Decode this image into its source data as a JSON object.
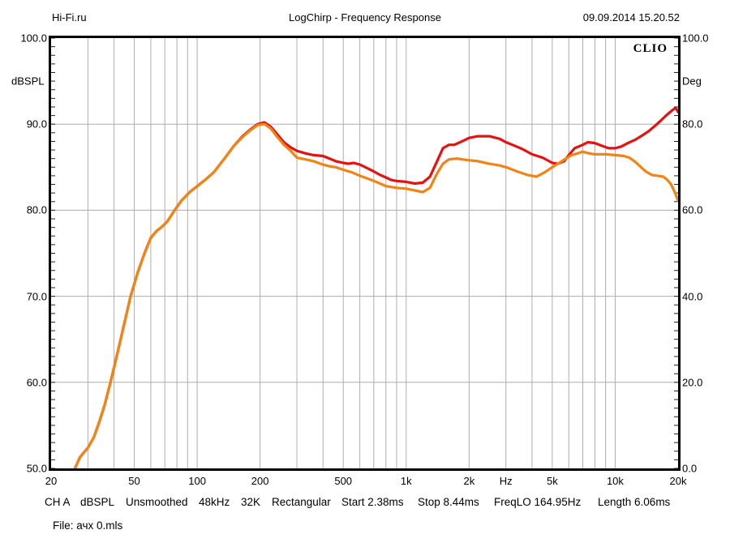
{
  "header": {
    "site": "Hi-Fi.ru",
    "title": "LogChirp - Frequency Response",
    "timestamp": "09.09.2014 15.20.52"
  },
  "branding": {
    "logo_text": "CLIO"
  },
  "file_line": "File: ачх 0.mls",
  "status_bar": {
    "items": [
      "CH A",
      "dBSPL",
      "Unsmoothed",
      "48kHz",
      "32K",
      "Rectangular",
      "Start 2.38ms",
      "Stop 8.44ms",
      "FreqLO 164.95Hz",
      "Length 6.06ms"
    ]
  },
  "colors": {
    "red_curve": "#e51212",
    "orange_curve": "#f08414",
    "grid": "#adadad",
    "axis": "#000000",
    "minor_tick": "#222222"
  },
  "chart_data": {
    "type": "line",
    "title": "LogChirp - Frequency Response",
    "x_axis": {
      "scale": "log",
      "unit": "Hz",
      "min": 20,
      "max": 20000,
      "unit_label_at": 3000,
      "ticks": [
        {
          "v": 20,
          "label": "20"
        },
        {
          "v": 50,
          "label": "50"
        },
        {
          "v": 100,
          "label": "100"
        },
        {
          "v": 200,
          "label": "200"
        },
        {
          "v": 500,
          "label": "500"
        },
        {
          "v": 1000,
          "label": "1k"
        },
        {
          "v": 2000,
          "label": "2k"
        },
        {
          "v": 5000,
          "label": "5k"
        },
        {
          "v": 10000,
          "label": "10k"
        },
        {
          "v": 20000,
          "label": "20k"
        }
      ],
      "gridlines": [
        30,
        40,
        50,
        60,
        70,
        80,
        90,
        100,
        200,
        300,
        400,
        500,
        600,
        700,
        800,
        900,
        1000,
        2000,
        3000,
        4000,
        5000,
        6000,
        7000,
        8000,
        9000,
        10000
      ]
    },
    "y_left_axis": {
      "label": "dBSPL",
      "min": 50,
      "max": 100,
      "major_step": 10,
      "minor_step": 1,
      "tick_labels": [
        "100.0",
        "90.0",
        "80.0",
        "70.0",
        "60.0",
        "50.0"
      ],
      "gridlines": [
        90,
        80,
        70,
        60
      ]
    },
    "y_right_axis": {
      "label": "Deg",
      "min": 0,
      "max": 100,
      "major_step": 20,
      "minor_step": 2,
      "tick_labels": [
        "100.0",
        "80.0",
        "60.0",
        "40.0",
        "20.0",
        "0.0"
      ]
    },
    "legend": "none",
    "grid": true,
    "series": [
      {
        "name": "red-response",
        "color_key": "red_curve",
        "axis": "left",
        "unit": "dBSPL",
        "points": [
          [
            26,
            50.0
          ],
          [
            27.5,
            51.3
          ],
          [
            30,
            52.4
          ],
          [
            32,
            53.6
          ],
          [
            34,
            55.4
          ],
          [
            36,
            57.3
          ],
          [
            38.3,
            59.8
          ],
          [
            41,
            62.8
          ],
          [
            44,
            66.0
          ],
          [
            48,
            70.0
          ],
          [
            52,
            72.8
          ],
          [
            56,
            75.0
          ],
          [
            60,
            76.8
          ],
          [
            64,
            77.6
          ],
          [
            68,
            78.1
          ],
          [
            72,
            78.7
          ],
          [
            78,
            80.0
          ],
          [
            84,
            81.1
          ],
          [
            92,
            82.1
          ],
          [
            100,
            82.8
          ],
          [
            110,
            83.6
          ],
          [
            120,
            84.4
          ],
          [
            135,
            86.0
          ],
          [
            150,
            87.5
          ],
          [
            165,
            88.6
          ],
          [
            180,
            89.4
          ],
          [
            195,
            90.0
          ],
          [
            210,
            90.2
          ],
          [
            225,
            89.7
          ],
          [
            240,
            88.9
          ],
          [
            260,
            87.9
          ],
          [
            280,
            87.3
          ],
          [
            300,
            86.9
          ],
          [
            330,
            86.6
          ],
          [
            360,
            86.4
          ],
          [
            400,
            86.3
          ],
          [
            430,
            86.0
          ],
          [
            460,
            85.7
          ],
          [
            500,
            85.5
          ],
          [
            530,
            85.4
          ],
          [
            560,
            85.5
          ],
          [
            600,
            85.3
          ],
          [
            650,
            84.9
          ],
          [
            700,
            84.5
          ],
          [
            750,
            84.1
          ],
          [
            800,
            83.8
          ],
          [
            850,
            83.5
          ],
          [
            900,
            83.4
          ],
          [
            1000,
            83.3
          ],
          [
            1100,
            83.1
          ],
          [
            1200,
            83.2
          ],
          [
            1300,
            83.9
          ],
          [
            1400,
            85.6
          ],
          [
            1500,
            87.2
          ],
          [
            1600,
            87.6
          ],
          [
            1700,
            87.6
          ],
          [
            1850,
            88.0
          ],
          [
            2000,
            88.4
          ],
          [
            2200,
            88.6
          ],
          [
            2500,
            88.6
          ],
          [
            2800,
            88.3
          ],
          [
            3000,
            87.9
          ],
          [
            3300,
            87.5
          ],
          [
            3600,
            87.1
          ],
          [
            4000,
            86.5
          ],
          [
            4500,
            86.1
          ],
          [
            5000,
            85.5
          ],
          [
            5300,
            85.4
          ],
          [
            5700,
            85.7
          ],
          [
            6000,
            86.4
          ],
          [
            6400,
            87.2
          ],
          [
            7000,
            87.6
          ],
          [
            7400,
            87.9
          ],
          [
            8000,
            87.8
          ],
          [
            8600,
            87.5
          ],
          [
            9300,
            87.2
          ],
          [
            10000,
            87.2
          ],
          [
            10700,
            87.4
          ],
          [
            11500,
            87.8
          ],
          [
            12500,
            88.2
          ],
          [
            13500,
            88.7
          ],
          [
            14500,
            89.2
          ],
          [
            15500,
            89.8
          ],
          [
            16500,
            90.4
          ],
          [
            17500,
            91.0
          ],
          [
            18500,
            91.5
          ],
          [
            19200,
            91.8
          ],
          [
            19600,
            91.8
          ],
          [
            20000,
            91.4
          ]
        ]
      },
      {
        "name": "orange-response",
        "color_key": "orange_curve",
        "axis": "left",
        "unit": "dBSPL",
        "points": [
          [
            26,
            50.0
          ],
          [
            27.5,
            51.3
          ],
          [
            30,
            52.4
          ],
          [
            32,
            53.6
          ],
          [
            34,
            55.4
          ],
          [
            36,
            57.3
          ],
          [
            38.3,
            59.8
          ],
          [
            41,
            62.8
          ],
          [
            44,
            66.0
          ],
          [
            48,
            70.0
          ],
          [
            52,
            72.8
          ],
          [
            56,
            75.0
          ],
          [
            60,
            76.8
          ],
          [
            64,
            77.6
          ],
          [
            68,
            78.1
          ],
          [
            72,
            78.7
          ],
          [
            78,
            80.0
          ],
          [
            84,
            81.1
          ],
          [
            92,
            82.1
          ],
          [
            100,
            82.8
          ],
          [
            110,
            83.6
          ],
          [
            120,
            84.4
          ],
          [
            135,
            86.0
          ],
          [
            150,
            87.5
          ],
          [
            165,
            88.5
          ],
          [
            180,
            89.3
          ],
          [
            195,
            89.9
          ],
          [
            210,
            90.0
          ],
          [
            225,
            89.5
          ],
          [
            240,
            88.6
          ],
          [
            260,
            87.6
          ],
          [
            280,
            86.9
          ],
          [
            300,
            86.1
          ],
          [
            330,
            85.9
          ],
          [
            360,
            85.7
          ],
          [
            400,
            85.3
          ],
          [
            430,
            85.1
          ],
          [
            460,
            85.0
          ],
          [
            500,
            84.7
          ],
          [
            550,
            84.4
          ],
          [
            600,
            84.0
          ],
          [
            650,
            83.7
          ],
          [
            700,
            83.4
          ],
          [
            750,
            83.1
          ],
          [
            800,
            82.8
          ],
          [
            900,
            82.6
          ],
          [
            1000,
            82.5
          ],
          [
            1100,
            82.3
          ],
          [
            1200,
            82.1
          ],
          [
            1300,
            82.6
          ],
          [
            1400,
            84.2
          ],
          [
            1500,
            85.4
          ],
          [
            1600,
            85.9
          ],
          [
            1750,
            86.0
          ],
          [
            2000,
            85.8
          ],
          [
            2200,
            85.7
          ],
          [
            2500,
            85.4
          ],
          [
            2800,
            85.2
          ],
          [
            3000,
            85.0
          ],
          [
            3400,
            84.5
          ],
          [
            3800,
            84.1
          ],
          [
            4200,
            83.9
          ],
          [
            4600,
            84.4
          ],
          [
            5000,
            85.0
          ],
          [
            5400,
            85.5
          ],
          [
            5800,
            86.0
          ],
          [
            6200,
            86.4
          ],
          [
            6600,
            86.6
          ],
          [
            7000,
            86.8
          ],
          [
            7500,
            86.6
          ],
          [
            8000,
            86.5
          ],
          [
            9000,
            86.5
          ],
          [
            10000,
            86.4
          ],
          [
            11000,
            86.3
          ],
          [
            11700,
            86.1
          ],
          [
            12500,
            85.6
          ],
          [
            13300,
            85.0
          ],
          [
            14000,
            84.5
          ],
          [
            15000,
            84.1
          ],
          [
            16000,
            84.0
          ],
          [
            17000,
            83.9
          ],
          [
            17800,
            83.5
          ],
          [
            18500,
            83.0
          ],
          [
            19200,
            82.2
          ],
          [
            20000,
            81.1
          ]
        ]
      }
    ]
  }
}
